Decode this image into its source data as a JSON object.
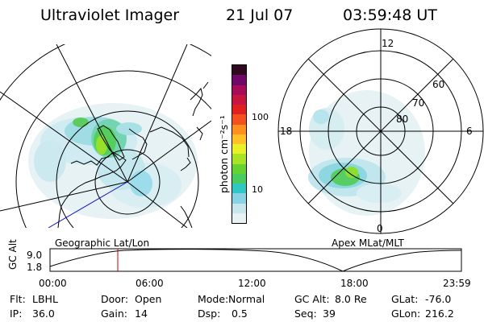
{
  "header": {
    "instrument": "Ultraviolet Imager",
    "date": "21 Jul 07",
    "time": "03:59:48 UT"
  },
  "left_panel": {
    "caption": "Geographic Lat/Lon"
  },
  "right_panel": {
    "caption": "Apex MLat/MLT",
    "mlt_labels": {
      "top": "12",
      "bottom": "0",
      "left": "18",
      "right": "6"
    },
    "lat_labels": [
      "60",
      "70",
      "80"
    ]
  },
  "colorbar": {
    "title": "photon cm⁻²s⁻¹",
    "ticks": [
      "100",
      "10"
    ],
    "colors": [
      "#e8f2f4",
      "#c8e6ee",
      "#88d2e6",
      "#30c8c4",
      "#48cc60",
      "#64d230",
      "#a8e424",
      "#e8f028",
      "#ffc028",
      "#ff9020",
      "#f45020",
      "#e02020",
      "#c81440",
      "#a80c58",
      "#700868",
      "#300820"
    ]
  },
  "timeline": {
    "axis_label": "GC Alt",
    "ticks_y": [
      "9.0",
      "1.8"
    ],
    "ticks_x": [
      "00:00",
      "06:00",
      "12:00",
      "18:00",
      "23:59"
    ],
    "current_time": "03:59"
  },
  "info": {
    "filter": {
      "label": "Flt:",
      "value": "LBHL"
    },
    "door": {
      "label": "Door:",
      "value": "Open"
    },
    "mode": {
      "label": "Mode:",
      "value": "Normal"
    },
    "gc_alt": {
      "label": "GC Alt:",
      "value": "8.0 Re"
    },
    "glat": {
      "label": "GLat:",
      "value": "-76.0"
    },
    "ip": {
      "label": "IP:",
      "value": "36.0"
    },
    "gain": {
      "label": "Gain:",
      "value": "14"
    },
    "dsp": {
      "label": "Dsp:",
      "value": "0.5"
    },
    "seq": {
      "label": "Seq:",
      "value": "39"
    },
    "glon": {
      "label": "GLon:",
      "value": "216.2"
    }
  }
}
